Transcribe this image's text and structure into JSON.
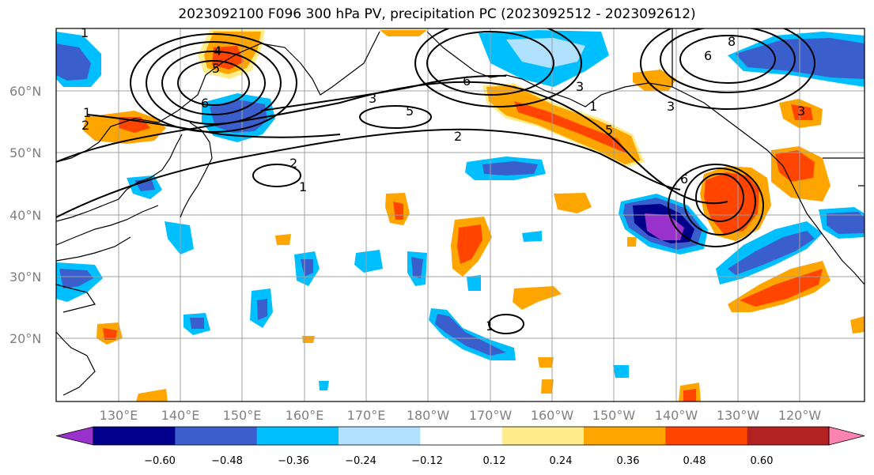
{
  "title": "2023092100 F096 300 hPa PV, precipitation PC (2023092512 - 2023092612)",
  "lat_labels": [
    "60°N",
    "50°N",
    "40°N",
    "30°N",
    "20°N"
  ],
  "lon_labels": [
    "130°E",
    "140°E",
    "150°E",
    "160°E",
    "170°E",
    "180°W",
    "170°W",
    "160°W",
    "150°W",
    "140°W",
    "130°W",
    "120°W"
  ],
  "colorbar": {
    "tick_labels": [
      "−0.60",
      "−0.48",
      "−0.36",
      "−0.24",
      "−0.12",
      "0.12",
      "0.24",
      "0.36",
      "0.48",
      "0.60"
    ],
    "colors": [
      "#9932cc",
      "#00008b",
      "#3a5fcd",
      "#00bfff",
      "#b0e2ff",
      "#ffffff",
      "#ffec8b",
      "#ffa500",
      "#ff4500",
      "#b22222",
      "#ff83b0"
    ]
  },
  "contour_labels": [
    "1",
    "1",
    "2",
    "2",
    "3",
    "4",
    "5",
    "5",
    "5",
    "6",
    "6",
    "6",
    "8",
    "2",
    "3",
    "3",
    "3",
    "6",
    "1",
    "1",
    "1"
  ]
}
